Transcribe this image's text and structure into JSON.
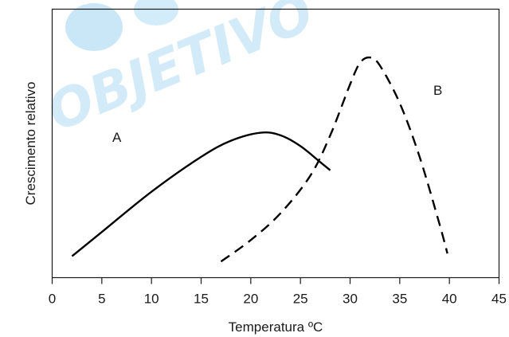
{
  "watermark": {
    "text": "OBJETIVO",
    "color": "#9ed4f2"
  },
  "chart_data": {
    "type": "line",
    "title": "",
    "xlabel": "Temperatura ºC",
    "ylabel": "Crescimento relativo",
    "xlim": [
      0,
      45
    ],
    "x_ticks": [
      0,
      5,
      10,
      15,
      20,
      25,
      30,
      35,
      40,
      45
    ],
    "x_tick_labels": [
      "0",
      "5",
      "10",
      "15",
      "20",
      "25",
      "30",
      "35",
      "40",
      "45"
    ],
    "ylim": [
      0,
      100
    ],
    "y_ticks_shown": false,
    "grid": false,
    "series": [
      {
        "name": "A",
        "style": "solid",
        "color": "#000000",
        "points": [
          [
            2,
            8
          ],
          [
            5,
            17
          ],
          [
            10,
            32
          ],
          [
            15,
            45
          ],
          [
            18,
            51
          ],
          [
            21,
            54
          ],
          [
            23,
            53
          ],
          [
            25,
            49
          ],
          [
            27,
            43
          ],
          [
            28,
            40
          ]
        ]
      },
      {
        "name": "B",
        "style": "dashed",
        "color": "#000000",
        "points": [
          [
            17,
            6
          ],
          [
            20,
            14
          ],
          [
            23,
            24
          ],
          [
            26,
            38
          ],
          [
            28,
            53
          ],
          [
            30,
            72
          ],
          [
            31,
            80
          ],
          [
            32,
            82
          ],
          [
            33,
            79
          ],
          [
            35,
            65
          ],
          [
            37,
            45
          ],
          [
            39,
            20
          ],
          [
            39.8,
            9
          ]
        ]
      }
    ]
  }
}
